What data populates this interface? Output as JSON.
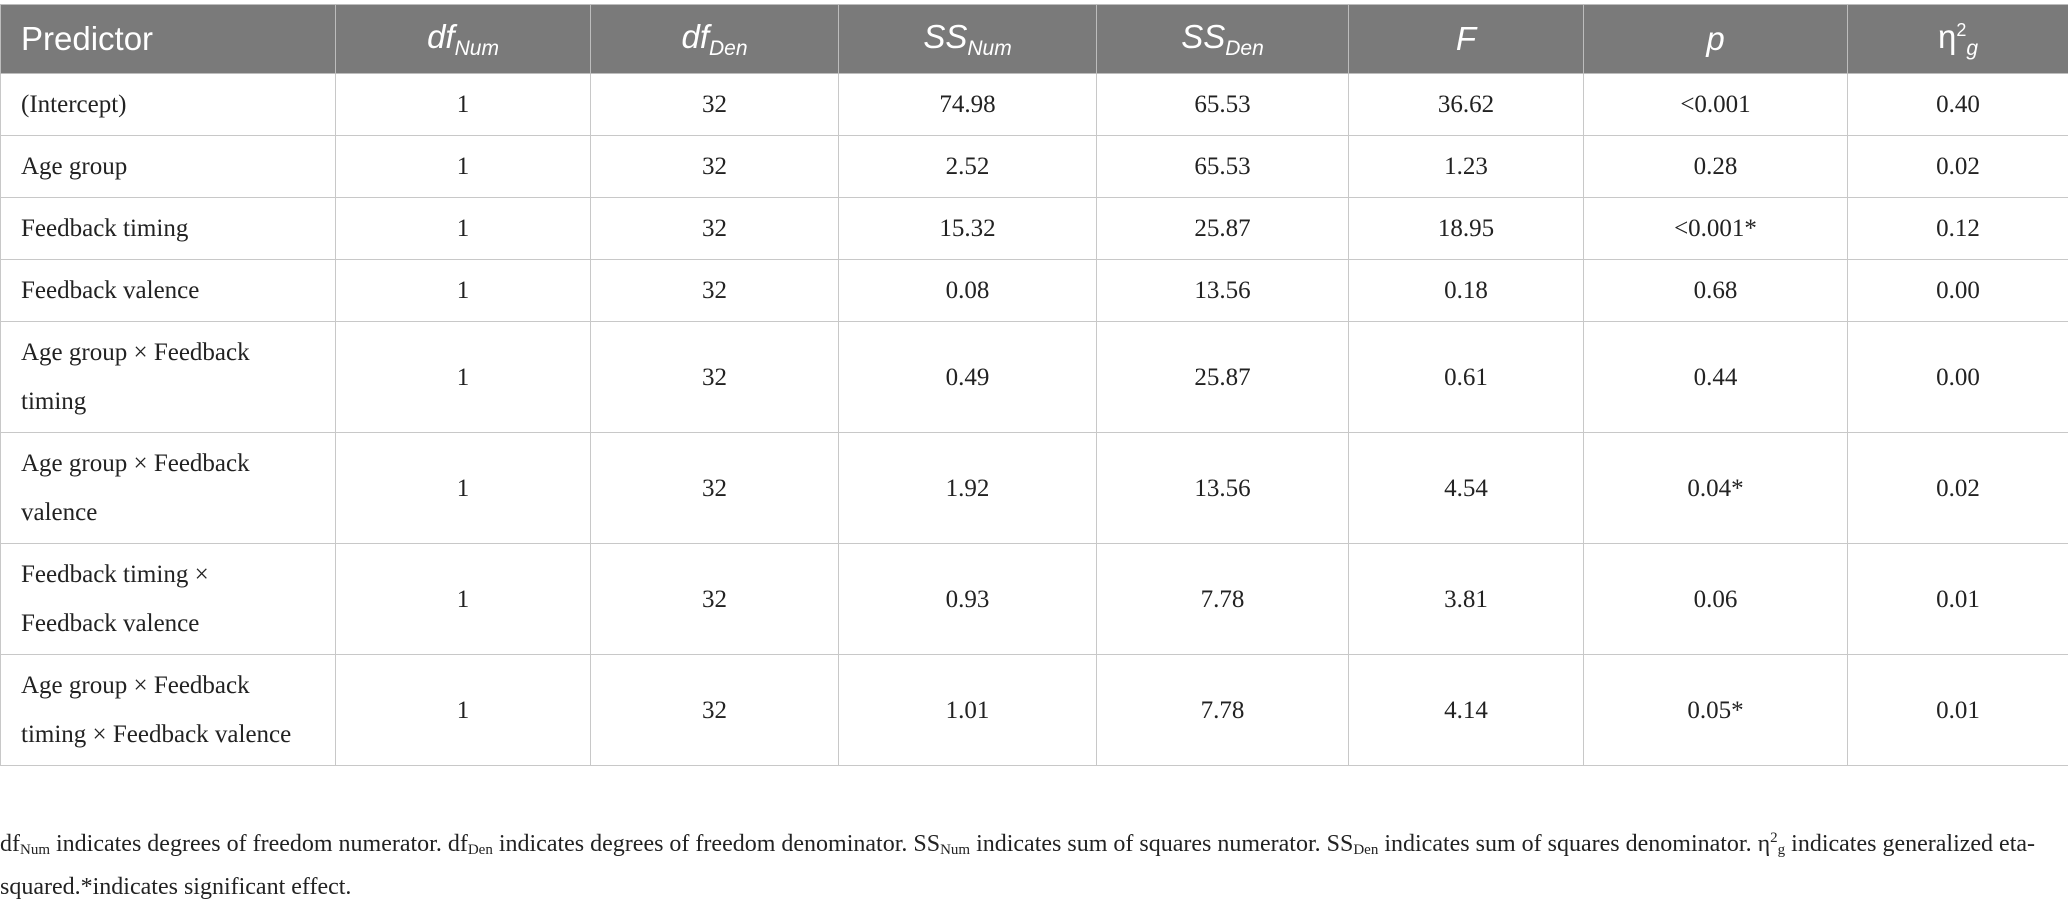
{
  "table": {
    "headers": [
      {
        "text": "Predictor"
      },
      {
        "text": "df",
        "sub": "Num",
        "italic": true
      },
      {
        "text": "df",
        "sub": "Den",
        "italic": true
      },
      {
        "text": "SS",
        "sub": "Num",
        "italic": true
      },
      {
        "text": "SS",
        "sub": "Den",
        "italic": true
      },
      {
        "text": "F",
        "italic": true
      },
      {
        "text": "p",
        "italic": true
      },
      {
        "text": "η",
        "sup": "2",
        "sub": "g"
      }
    ],
    "rows": [
      [
        "(Intercept)",
        "1",
        "32",
        "74.98",
        "65.53",
        "36.62",
        "<0.001",
        "0.40"
      ],
      [
        "Age group",
        "1",
        "32",
        "2.52",
        "65.53",
        "1.23",
        "0.28",
        "0.02"
      ],
      [
        "Feedback timing",
        "1",
        "32",
        "15.32",
        "25.87",
        "18.95",
        "<0.001*",
        "0.12"
      ],
      [
        "Feedback valence",
        "1",
        "32",
        "0.08",
        "13.56",
        "0.18",
        "0.68",
        "0.00"
      ],
      [
        "Age group × Feedback timing",
        "1",
        "32",
        "0.49",
        "25.87",
        "0.61",
        "0.44",
        "0.00"
      ],
      [
        "Age group × Feedback valence",
        "1",
        "32",
        "1.92",
        "13.56",
        "4.54",
        "0.04*",
        "0.02"
      ],
      [
        "Feedback timing × Feedback valence",
        "1",
        "32",
        "0.93",
        "7.78",
        "3.81",
        "0.06",
        "0.01"
      ],
      [
        "Age group × Feedback timing × Feedback valence",
        "1",
        "32",
        "1.01",
        "7.78",
        "4.14",
        "0.05*",
        "0.01"
      ]
    ]
  },
  "footnote": [
    {
      "text": "df"
    },
    {
      "sub": "Num"
    },
    {
      "text": " indicates degrees of freedom numerator. df"
    },
    {
      "sub": "Den"
    },
    {
      "text": " indicates degrees of freedom denominator. SS"
    },
    {
      "sub": "Num"
    },
    {
      "text": " indicates sum of squares numerator. SS"
    },
    {
      "sub": "Den"
    },
    {
      "text": " indicates sum of squares denominator. η"
    },
    {
      "sup": "2"
    },
    {
      "sub": "g"
    },
    {
      "text": " indicates generalized eta-squared.*indicates significant effect."
    }
  ]
}
